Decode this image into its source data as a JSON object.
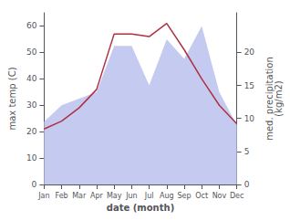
{
  "chart_data": {
    "type": "line",
    "categories": [
      "Jan",
      "Feb",
      "Mar",
      "Apr",
      "May",
      "Jun",
      "Jul",
      "Aug",
      "Sep",
      "Oct",
      "Nov",
      "Dec"
    ],
    "series": [
      {
        "type": "area",
        "axis": "y2",
        "color": "#c5caf0",
        "values": [
          9.5,
          12,
          13,
          14,
          21,
          21,
          15,
          22,
          19,
          24,
          14,
          9
        ]
      },
      {
        "type": "line",
        "color": "#b03040",
        "values": [
          21,
          24,
          29,
          36,
          57,
          57,
          56,
          61,
          51,
          40,
          30,
          23
        ]
      }
    ],
    "xlabel": "date (month)",
    "ylabel": "max temp (C)",
    "y2label": "med. precipitation\n(kg/m2)",
    "ylim": [
      0,
      65
    ],
    "yticks": [
      0,
      10,
      20,
      30,
      40,
      50,
      60
    ],
    "y2lim": [
      0,
      26
    ],
    "y2ticks": [
      0,
      5,
      10,
      15,
      20
    ],
    "grid": false
  }
}
